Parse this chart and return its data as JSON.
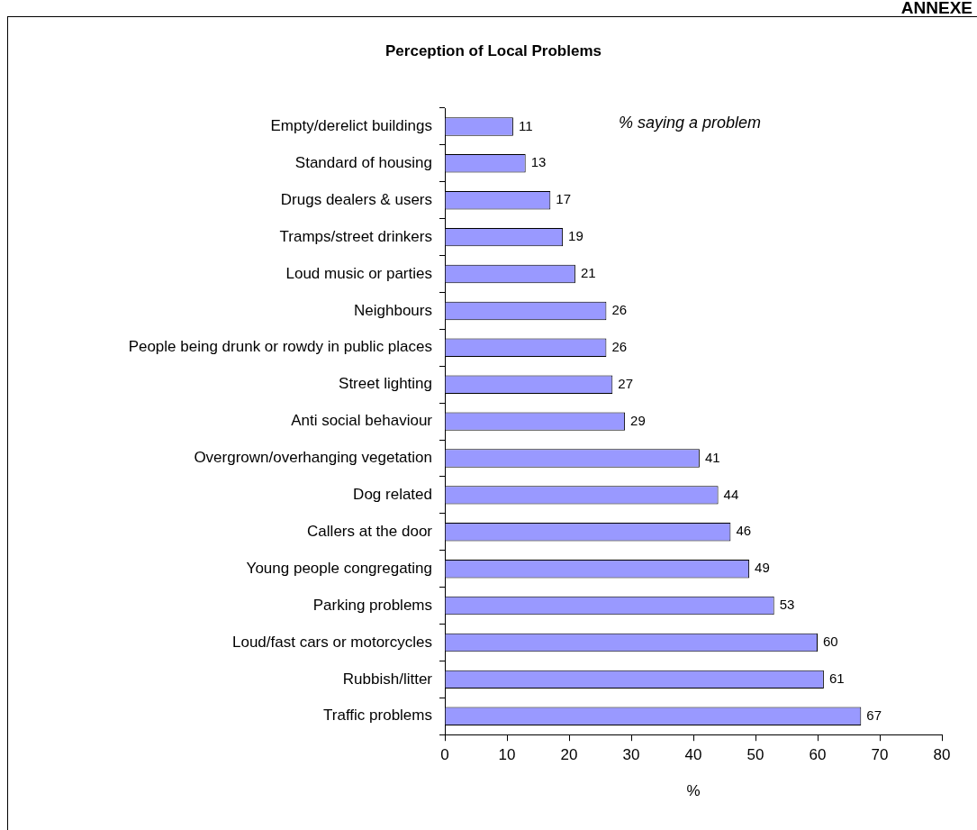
{
  "chart_data": {
    "type": "bar",
    "orientation": "horizontal",
    "title": "Perception of Local Problems",
    "xlabel": "%",
    "annotations": [
      "% saying a problem",
      "ANNEXE"
    ],
    "categories": [
      "Empty/derelict buildings",
      "Standard of housing",
      "Drugs dealers & users",
      "Tramps/street drinkers",
      "Loud music or parties",
      "Neighbours",
      "People being drunk or rowdy in public places",
      "Street lighting",
      "Anti social behaviour",
      "Overgrown/overhanging vegetation",
      "Dog related",
      "Callers at the door",
      "Young people congregating",
      "Parking problems",
      "Loud/fast cars or motorcycles",
      "Rubbish/litter",
      "Traffic problems"
    ],
    "values": [
      11,
      13,
      17,
      19,
      21,
      26,
      26,
      27,
      29,
      41,
      44,
      46,
      49,
      53,
      60,
      61,
      67
    ],
    "color": "#9999ff",
    "xlim": [
      0,
      80
    ],
    "xticks": [
      0,
      10,
      20,
      30,
      40,
      50,
      60,
      70,
      80
    ],
    "grid": false,
    "legend": false,
    "data_labels": true
  }
}
